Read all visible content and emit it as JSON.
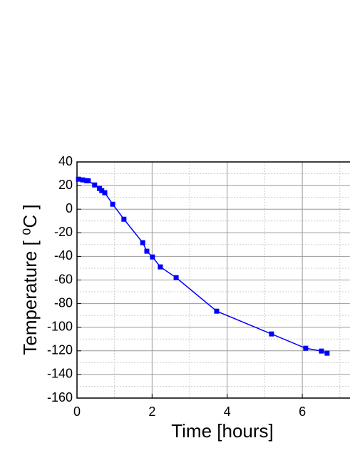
{
  "chart_data": {
    "type": "line",
    "x_label": "Time [hours]",
    "y_label": "Temperature [ ⁰C ]",
    "series": [
      {
        "name": "Temperature",
        "color": "#0000ff",
        "x": [
          0.04,
          0.15,
          0.25,
          0.3,
          0.47,
          0.6,
          0.66,
          0.74,
          0.95,
          1.25,
          1.75,
          1.86,
          2.01,
          2.22,
          2.64,
          3.72,
          5.18,
          6.09,
          6.51,
          6.66
        ],
        "values": [
          25.4,
          24.8,
          24.2,
          24,
          20.5,
          17.5,
          15.7,
          13.9,
          4.2,
          -8.5,
          -28.4,
          -35.6,
          -40.5,
          -48.9,
          -58,
          -86.4,
          -105.7,
          -117.8,
          -120.2,
          -122
        ]
      }
    ],
    "xlim": [
      0,
      7.27
    ],
    "xticks": [
      0,
      2,
      4,
      6
    ],
    "ylim": [
      -160,
      40
    ],
    "yticks": [
      -160,
      -140,
      -120,
      -100,
      -80,
      -60,
      -40,
      -20,
      0,
      20,
      40
    ],
    "minor_xticks": [
      1,
      3,
      5,
      7
    ],
    "minor_yticks": [
      -150,
      -130,
      -110,
      -90,
      -70,
      -50,
      -30,
      -10,
      10,
      30
    ],
    "grid": true,
    "marker": "square"
  }
}
